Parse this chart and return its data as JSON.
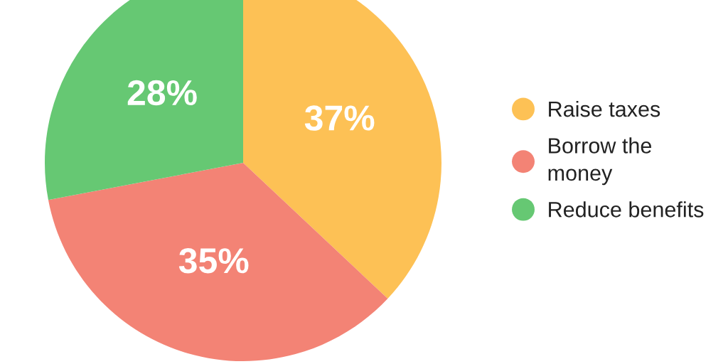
{
  "chart_data": {
    "type": "pie",
    "categories": [
      "Raise taxes",
      "Borrow the\nmoney",
      "Reduce benefits"
    ],
    "values": [
      37,
      35,
      28
    ],
    "colors": [
      "#fdc155",
      "#f38375",
      "#66c873"
    ],
    "value_labels": [
      "37%",
      "35%",
      "28%"
    ],
    "legend": "right"
  }
}
